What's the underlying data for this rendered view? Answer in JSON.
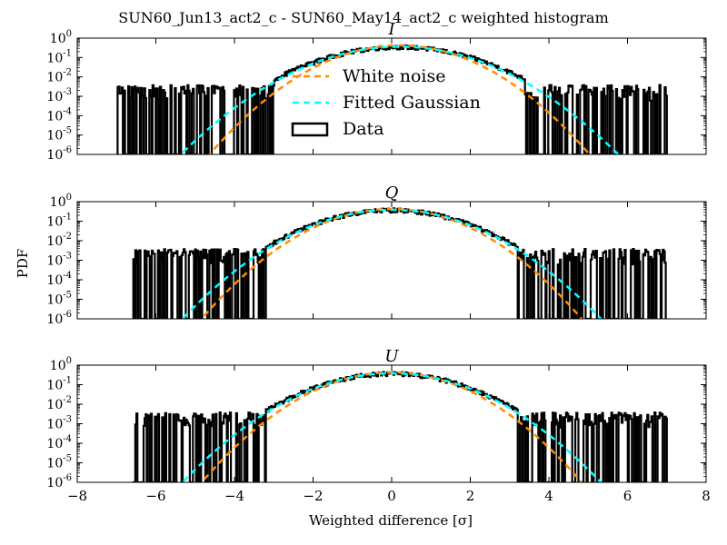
{
  "figure": {
    "title": "SUN60_Jun13_act2_c - SUN60_May14_act2_c weighted histogram",
    "xlabel": "Weighted difference [σ]",
    "ylabel": "PDF"
  },
  "legend": {
    "entries": [
      {
        "label": "White noise",
        "style": "dashed",
        "color": "#ff8c00"
      },
      {
        "label": "Fitted Gaussian",
        "style": "dashed",
        "color": "#00ffff"
      },
      {
        "label": "Data",
        "style": "box",
        "color": "#000000"
      }
    ],
    "placement": "upper-center (panel I)"
  },
  "colors": {
    "data": "#000000",
    "white_noise": "#ff8c00",
    "fitted_gaussian": "#00ffff"
  },
  "chart_data": [
    {
      "type": "line",
      "panel_title": "I",
      "yscale": "log",
      "xlim": [
        -8,
        8
      ],
      "ylim": [
        1e-06,
        1
      ],
      "x_ticks": [
        -8,
        -6,
        -4,
        -2,
        0,
        2,
        4,
        6,
        8
      ],
      "y_ticks": [
        "10^0",
        "10^-1",
        "10^-2",
        "10^-3",
        "10^-4",
        "10^-5",
        "10^-6"
      ],
      "data_range": [
        -7.0,
        7.0
      ],
      "series": [
        {
          "name": "White noise",
          "model": "gaussian",
          "mean": 0.2,
          "sigma": 0.95
        },
        {
          "name": "Fitted Gaussian",
          "model": "gaussian",
          "mean": 0.2,
          "sigma": 1.1
        },
        {
          "name": "Data",
          "model": "histogram",
          "mean": 0.2,
          "sigma": 1.15,
          "noise_floor_range": [
            -7.0,
            7.0
          ]
        }
      ]
    },
    {
      "type": "line",
      "panel_title": "Q",
      "yscale": "log",
      "xlim": [
        -8,
        8
      ],
      "ylim": [
        1e-06,
        1
      ],
      "x_ticks": [
        -8,
        -6,
        -4,
        -2,
        0,
        2,
        4,
        6,
        8
      ],
      "y_ticks": [
        "10^0",
        "10^-1",
        "10^-2",
        "10^-3",
        "10^-4",
        "10^-5",
        "10^-6"
      ],
      "data_range": [
        -6.6,
        7.0
      ],
      "series": [
        {
          "name": "White noise",
          "model": "gaussian",
          "mean": 0.0,
          "sigma": 0.95
        },
        {
          "name": "Fitted Gaussian",
          "model": "gaussian",
          "mean": 0.0,
          "sigma": 1.05
        },
        {
          "name": "Data",
          "model": "histogram",
          "mean": 0.0,
          "sigma": 1.08,
          "noise_floor_range": [
            -6.6,
            7.0
          ]
        }
      ]
    },
    {
      "type": "line",
      "panel_title": "U",
      "yscale": "log",
      "xlim": [
        -8,
        8
      ],
      "ylim": [
        1e-06,
        1
      ],
      "x_ticks": [
        -8,
        -6,
        -4,
        -2,
        0,
        2,
        4,
        6,
        8
      ],
      "y_ticks": [
        "10^0",
        "10^-1",
        "10^-2",
        "10^-3",
        "10^-4",
        "10^-5",
        "10^-6"
      ],
      "data_range": [
        -6.6,
        7.0
      ],
      "series": [
        {
          "name": "White noise",
          "model": "gaussian",
          "mean": 0.0,
          "sigma": 0.95
        },
        {
          "name": "Fitted Gaussian",
          "model": "gaussian",
          "mean": 0.0,
          "sigma": 1.05
        },
        {
          "name": "Data",
          "model": "histogram",
          "mean": 0.0,
          "sigma": 1.08,
          "noise_floor_range": [
            -6.6,
            7.0
          ]
        }
      ]
    }
  ]
}
